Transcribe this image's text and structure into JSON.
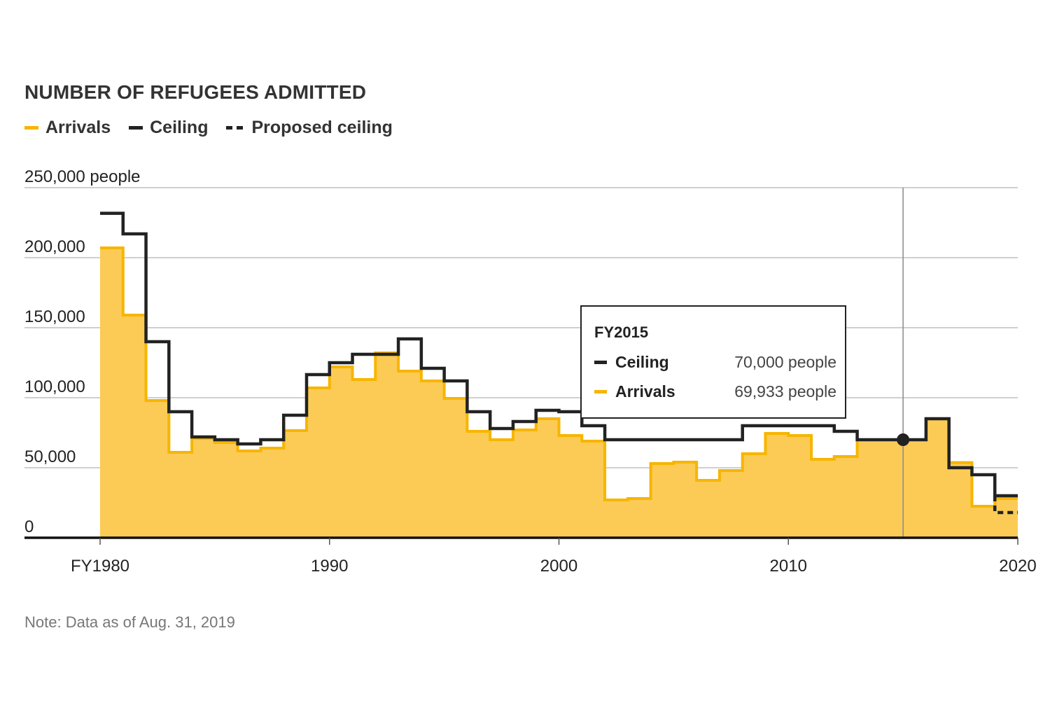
{
  "title": "NUMBER OF REFUGEES ADMITTED",
  "legend": [
    {
      "label": "Arrivals",
      "color": "#f7b500"
    },
    {
      "label": "Ceiling",
      "color": "#222222"
    },
    {
      "label": "Proposed ceiling",
      "color": "#222222",
      "style": "dashed"
    }
  ],
  "note": "Note: Data as of Aug. 31, 2019",
  "tooltip": {
    "title": "FY2015",
    "rows": [
      {
        "label": "Ceiling",
        "value": "70,000 people",
        "color": "#222222"
      },
      {
        "label": "Arrivals",
        "value": "69,933 people",
        "color": "#f7b500"
      }
    ]
  },
  "chart_data": {
    "type": "area",
    "ylim": [
      0,
      250000
    ],
    "xlim": [
      1980,
      2020
    ],
    "y_ticks": [
      {
        "value": 250000,
        "label": "250,000 people"
      },
      {
        "value": 200000,
        "label": "200,000"
      },
      {
        "value": 150000,
        "label": "150,000"
      },
      {
        "value": 100000,
        "label": "100,000"
      },
      {
        "value": 50000,
        "label": "50,000"
      },
      {
        "value": 0,
        "label": "0"
      }
    ],
    "x_ticks": [
      {
        "value": 1980,
        "label": "FY1980"
      },
      {
        "value": 1990,
        "label": "1990"
      },
      {
        "value": 2000,
        "label": "2000"
      },
      {
        "value": 2010,
        "label": "2010"
      },
      {
        "value": 2020,
        "label": "2020"
      }
    ],
    "highlight_year": 2015,
    "series": [
      {
        "name": "Ceiling",
        "color": "#222222",
        "x": [
          1980,
          1981,
          1982,
          1983,
          1984,
          1985,
          1986,
          1987,
          1988,
          1989,
          1990,
          1991,
          1992,
          1993,
          1994,
          1995,
          1996,
          1997,
          1998,
          1999,
          2000,
          2001,
          2002,
          2003,
          2004,
          2005,
          2006,
          2007,
          2008,
          2009,
          2010,
          2011,
          2012,
          2013,
          2014,
          2015,
          2016,
          2017,
          2018,
          2019
        ],
        "values": [
          231700,
          217000,
          140000,
          90000,
          72000,
          70000,
          67000,
          70000,
          87500,
          116500,
          125000,
          131000,
          131000,
          142000,
          121000,
          112000,
          90000,
          78000,
          83000,
          91000,
          90000,
          80000,
          70000,
          70000,
          70000,
          70000,
          70000,
          70000,
          80000,
          80000,
          80000,
          80000,
          76000,
          70000,
          70000,
          70000,
          85000,
          50000,
          45000,
          30000
        ]
      },
      {
        "name": "Arrivals",
        "color": "#f7b500",
        "x": [
          1980,
          1981,
          1982,
          1983,
          1984,
          1985,
          1986,
          1987,
          1988,
          1989,
          1990,
          1991,
          1992,
          1993,
          1994,
          1995,
          1996,
          1997,
          1998,
          1999,
          2000,
          2001,
          2002,
          2003,
          2004,
          2005,
          2006,
          2007,
          2008,
          2009,
          2010,
          2011,
          2012,
          2013,
          2014,
          2015,
          2016,
          2017,
          2018,
          2019
        ],
        "values": [
          207000,
          159000,
          98000,
          61000,
          71000,
          68000,
          62000,
          64000,
          76500,
          107000,
          122000,
          113000,
          132000,
          119000,
          112000,
          99500,
          76000,
          70000,
          77000,
          85000,
          73000,
          69000,
          27000,
          28000,
          53000,
          54000,
          41000,
          48000,
          60000,
          74500,
          73000,
          56000,
          58000,
          70000,
          70000,
          69933,
          85000,
          53700,
          22500,
          28000
        ]
      },
      {
        "name": "Proposed ceiling",
        "color": "#222222",
        "style": "dashed",
        "x": [
          2019,
          2020
        ],
        "values": [
          30000,
          18000
        ]
      }
    ]
  }
}
